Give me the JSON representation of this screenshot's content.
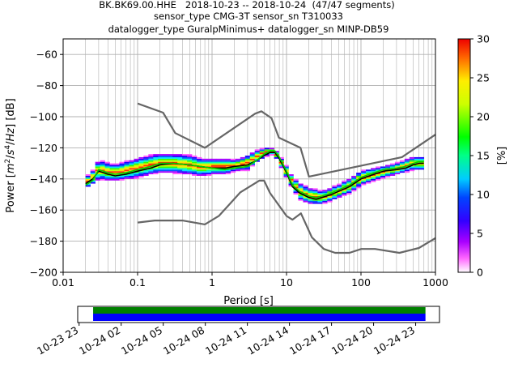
{
  "title_lines": [
    "BK.BK69.00.HHE   2018-10-23 -- 2018-10-24  (47/47 segments)",
    "sensor_type CMG-3T sensor_sn T310033",
    "datalogger_type GuralpMinimus+ datalogger_sn MINP-DB59"
  ],
  "chart_data": [
    {
      "type": "heatmap",
      "title": "BK.BK69.00.HHE   2018-10-23 -- 2018-10-24  (47/47 segments)",
      "xlabel": "Period [s]",
      "ylabel_parts": [
        "Power [",
        "m",
        "2",
        "/",
        "s",
        "4",
        "/",
        "Hz",
        "] [dB]"
      ],
      "x_scale": "log",
      "xlim": [
        0.01,
        1000
      ],
      "ylim": [
        -200,
        -50
      ],
      "x_ticks": [
        0.01,
        0.1,
        1,
        10,
        100,
        1000
      ],
      "x_tick_labels": [
        "0.01",
        "0.1",
        "1",
        "10",
        "100",
        "1000"
      ],
      "y_ticks": [
        -200,
        -180,
        -160,
        -140,
        -120,
        -100,
        -80,
        -60
      ],
      "y_tick_labels": [
        "−200",
        "−180",
        "−160",
        "−140",
        "−120",
        "−100",
        "−80",
        "−60"
      ],
      "grid": true,
      "colorbar": {
        "label": "[%]",
        "range": [
          0,
          30
        ],
        "ticks": [
          0,
          5,
          10,
          15,
          20,
          25,
          30
        ],
        "tick_labels": [
          "0",
          "5",
          "10",
          "15",
          "20",
          "25",
          "30"
        ]
      },
      "psd_spread": [
        {
          "period": 0.02,
          "low": -146,
          "high": -139
        },
        {
          "period": 0.025,
          "low": -143,
          "high": -135
        },
        {
          "period": 0.03,
          "low": -140,
          "high": -128
        },
        {
          "period": 0.04,
          "low": -141,
          "high": -130
        },
        {
          "period": 0.05,
          "low": -141,
          "high": -131
        },
        {
          "period": 0.07,
          "low": -140,
          "high": -129
        },
        {
          "period": 0.1,
          "low": -139,
          "high": -127
        },
        {
          "period": 0.15,
          "low": -137,
          "high": -125
        },
        {
          "period": 0.2,
          "low": -136,
          "high": -124
        },
        {
          "period": 0.3,
          "low": -136,
          "high": -124
        },
        {
          "period": 0.5,
          "low": -137,
          "high": -125
        },
        {
          "period": 0.7,
          "low": -138,
          "high": -127
        },
        {
          "period": 1,
          "low": -137,
          "high": -127
        },
        {
          "period": 1.5,
          "low": -137,
          "high": -127
        },
        {
          "period": 2,
          "low": -135,
          "high": -128
        },
        {
          "period": 3,
          "low": -134,
          "high": -125
        },
        {
          "period": 4,
          "low": -129,
          "high": -122
        },
        {
          "period": 5,
          "low": -126,
          "high": -120
        },
        {
          "period": 6,
          "low": -124,
          "high": -120
        },
        {
          "period": 7,
          "low": -125,
          "high": -121
        },
        {
          "period": 8,
          "low": -130,
          "high": -125
        },
        {
          "period": 10,
          "low": -139,
          "high": -132
        },
        {
          "period": 12,
          "low": -146,
          "high": -139
        },
        {
          "period": 15,
          "low": -153,
          "high": -143
        },
        {
          "period": 20,
          "low": -156,
          "high": -146
        },
        {
          "period": 30,
          "low": -156,
          "high": -148
        },
        {
          "period": 50,
          "low": -152,
          "high": -144
        },
        {
          "period": 70,
          "low": -149,
          "high": -140
        },
        {
          "period": 100,
          "low": -144,
          "high": -135
        },
        {
          "period": 200,
          "low": -139,
          "high": -132
        },
        {
          "period": 300,
          "low": -137,
          "high": -130
        },
        {
          "period": 500,
          "low": -134,
          "high": -126
        },
        {
          "period": 700,
          "low": -134,
          "high": -126
        }
      ],
      "series": [
        {
          "role": "mean",
          "color": "#000000",
          "x": [
            0.02,
            0.025,
            0.03,
            0.04,
            0.05,
            0.07,
            0.1,
            0.15,
            0.2,
            0.3,
            0.5,
            0.7,
            1,
            1.5,
            2,
            3,
            4,
            5,
            6,
            7,
            8,
            10,
            12,
            15,
            20,
            25,
            30,
            40,
            50,
            70,
            100,
            150,
            200,
            300,
            400,
            500,
            600,
            700
          ],
          "y": [
            -143,
            -140,
            -135,
            -137,
            -138,
            -137,
            -135,
            -133,
            -131,
            -130,
            -131,
            -132,
            -133,
            -133,
            -132,
            -131,
            -128,
            -125,
            -123,
            -123,
            -127,
            -136,
            -145,
            -149,
            -152,
            -153,
            -152,
            -150,
            -148,
            -145,
            -140,
            -137,
            -135,
            -134,
            -133,
            -131,
            -130,
            -130
          ]
        },
        {
          "role": "mode",
          "color": "#00cc00",
          "x": [
            0.02,
            0.025,
            0.03,
            0.04,
            0.05,
            0.07,
            0.1,
            0.15,
            0.2,
            0.3,
            0.5,
            0.7,
            1,
            1.5,
            2,
            3,
            4,
            5,
            6,
            7,
            8,
            10,
            12,
            15,
            20,
            25,
            30,
            40,
            50,
            70,
            100,
            150,
            200,
            300,
            400,
            500,
            600,
            700
          ],
          "y": [
            -144,
            -141,
            -134,
            -136,
            -137,
            -136,
            -134,
            -132,
            -130,
            -130,
            -131,
            -132,
            -133,
            -134,
            -133,
            -132,
            -128,
            -124,
            -122,
            -122,
            -126,
            -135,
            -144,
            -148,
            -151,
            -152,
            -151,
            -149,
            -147,
            -144,
            -139,
            -136,
            -134,
            -133,
            -132,
            -130,
            -129,
            -129
          ]
        },
        {
          "role": "NHNM",
          "color": "#666666",
          "x": [
            0.1,
            0.22,
            0.32,
            0.8,
            3.8,
            4.6,
            6.3,
            7.9,
            15.4,
            20,
            354.8,
            1000
          ],
          "y": [
            -91.5,
            -97.4,
            -110.5,
            -120,
            -98,
            -96.5,
            -101,
            -113.5,
            -120,
            -138.5,
            -126,
            -111.5
          ]
        },
        {
          "role": "NLNM",
          "color": "#666666",
          "x": [
            0.1,
            0.17,
            0.4,
            0.8,
            1.24,
            2.4,
            4.3,
            5,
            6,
            10,
            12,
            15.6,
            21.9,
            31.6,
            45,
            70,
            101,
            154,
            328,
            600,
            1000
          ],
          "y": [
            -168,
            -166.7,
            -166.7,
            -169.2,
            -163.7,
            -148.6,
            -141.1,
            -141.1,
            -149,
            -163.8,
            -166.2,
            -162.1,
            -177.5,
            -185,
            -187.5,
            -187.5,
            -185,
            -185,
            -187.5,
            -184.4,
            -178
          ]
        }
      ]
    },
    {
      "type": "timeline",
      "x_ticks": [
        "10-23 23",
        "10-24 02",
        "10-24 05",
        "10-24 08",
        "10-24 11",
        "10-24 14",
        "10-24 17",
        "10-24 20",
        "10-24 23"
      ],
      "x_tick_hours": [
        23,
        26,
        29,
        32,
        35,
        38,
        41,
        44,
        47
      ],
      "xlim_hours": [
        22.9,
        48.7
      ],
      "data_coverage_hours": [
        24,
        47.7
      ],
      "colors": {
        "used": "#0000ff",
        "available": "#008000",
        "frame": "#000000"
      }
    }
  ]
}
